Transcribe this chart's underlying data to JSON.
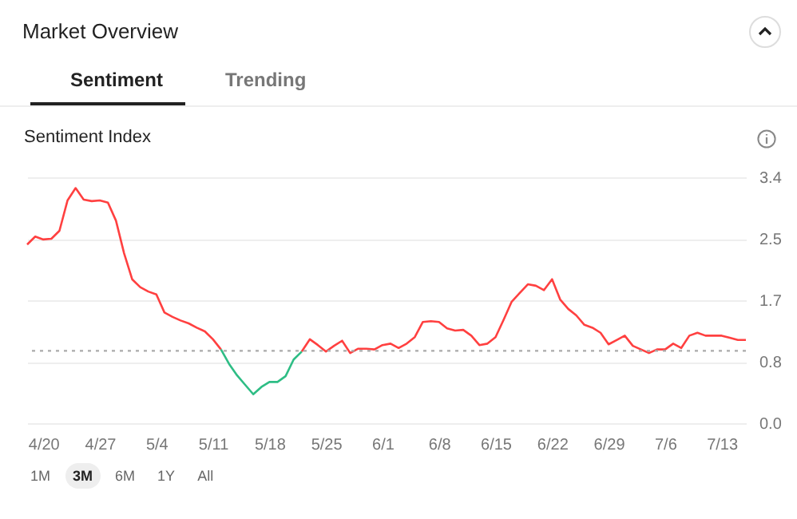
{
  "chart_data": {
    "type": "line",
    "title": "Sentiment Index",
    "annotations": [
      "Market Overview",
      "Sentiment",
      "Trending",
      "1M",
      "3M",
      "6M",
      "1Y",
      "All"
    ],
    "x": [
      "--04-18",
      "--04-19",
      "--04-20",
      "--04-21",
      "--04-22",
      "--04-23",
      "--04-24",
      "--04-25",
      "--04-26",
      "--04-27",
      "--04-28",
      "--04-29",
      "--04-30",
      "--05-01",
      "--05-02",
      "--05-03",
      "--05-04",
      "--05-05",
      "--05-06",
      "--05-07",
      "--05-08",
      "--05-09",
      "--05-10",
      "--05-11",
      "--05-12",
      "--05-13",
      "--05-14",
      "--05-15",
      "--05-16",
      "--05-17",
      "--05-18",
      "--05-19",
      "--05-20",
      "--05-21",
      "--05-22",
      "--05-23",
      "--05-24",
      "--05-25",
      "--05-26",
      "--05-27",
      "--05-28",
      "--05-29",
      "--05-30",
      "--05-31",
      "--06-01",
      "--06-02",
      "--06-03",
      "--06-04",
      "--06-05",
      "--06-06",
      "--06-07",
      "--06-08",
      "--06-09",
      "--06-10",
      "--06-11",
      "--06-12",
      "--06-13",
      "--06-14",
      "--06-15",
      "--06-16",
      "--06-17",
      "--06-18",
      "--06-19",
      "--06-20",
      "--06-21",
      "--06-22",
      "--06-23",
      "--06-24",
      "--06-25",
      "--06-26",
      "--06-27",
      "--06-28",
      "--06-29",
      "--06-30",
      "--07-01",
      "--07-02",
      "--07-03",
      "--07-04",
      "--07-05",
      "--07-06",
      "--07-07",
      "--07-08",
      "--07-09",
      "--07-10",
      "--07-11",
      "--07-12",
      "--07-13",
      "--07-14",
      "--07-15",
      "--07-16"
    ],
    "series": [
      {
        "color": "#ff4040",
        "values": [
          2.47,
          2.58,
          2.54,
          2.55,
          2.66,
          3.08,
          3.25,
          3.09,
          3.07,
          3.08,
          3.05,
          2.8,
          2.35,
          1.99,
          1.88,
          1.82,
          1.78,
          1.53,
          1.47,
          1.42,
          1.38,
          1.32,
          1.27,
          1.16,
          1.02,
          null,
          null,
          null,
          null,
          null,
          null,
          null,
          null,
          null,
          0.99,
          1.16,
          1.08,
          0.99,
          1.07,
          1.14,
          0.97,
          1.03,
          1.03,
          1.02,
          1.08,
          1.1,
          1.04,
          1.1,
          1.19,
          1.4,
          1.41,
          1.4,
          1.31,
          1.28,
          1.29,
          1.21,
          1.08,
          1.1,
          1.19,
          1.43,
          1.68,
          1.8,
          1.92,
          1.9,
          1.84,
          1.99,
          1.71,
          1.58,
          1.49,
          1.36,
          1.32,
          1.25,
          1.09,
          1.15,
          1.21,
          1.07,
          1.02,
          0.97,
          1.02,
          1.02,
          1.1,
          1.04,
          1.21,
          1.25,
          1.21,
          1.21,
          1.21,
          1.18,
          1.15,
          1.15
        ]
      },
      {
        "color": "#2ebd85",
        "values": [
          null,
          null,
          null,
          null,
          null,
          null,
          null,
          null,
          null,
          null,
          null,
          null,
          null,
          null,
          null,
          null,
          null,
          null,
          null,
          null,
          null,
          null,
          null,
          null,
          1.02,
          0.82,
          0.66,
          0.53,
          0.4,
          0.5,
          0.57,
          0.57,
          0.65,
          0.88,
          0.99,
          null,
          null,
          null,
          null,
          null,
          null,
          null,
          null,
          null,
          null,
          null,
          null,
          null,
          null,
          null,
          null,
          null,
          null,
          null,
          null,
          null,
          null,
          null,
          null,
          null,
          null,
          null,
          null,
          null,
          null,
          null,
          null,
          null,
          null,
          null,
          null,
          null,
          null,
          null,
          null,
          null,
          null,
          null,
          null,
          null,
          null,
          null,
          null,
          null,
          null,
          null,
          null,
          null,
          null,
          null
        ]
      }
    ],
    "xlim": [
      "--04-18",
      "--07-16"
    ],
    "xticks": [
      {
        "value": "--04-20",
        "label": "4/20"
      },
      {
        "value": "--04-27",
        "label": "4/27"
      },
      {
        "value": "--05-04",
        "label": "5/4"
      },
      {
        "value": "--05-11",
        "label": "5/11"
      },
      {
        "value": "--05-18",
        "label": "5/18"
      },
      {
        "value": "--05-25",
        "label": "5/25"
      },
      {
        "value": "--06-01",
        "label": "6/1"
      },
      {
        "value": "--06-08",
        "label": "6/8"
      },
      {
        "value": "--06-15",
        "label": "6/15"
      },
      {
        "value": "--06-22",
        "label": "6/22"
      },
      {
        "value": "--06-29",
        "label": "6/29"
      },
      {
        "value": "--07-06",
        "label": "7/6"
      },
      {
        "value": "--07-13",
        "label": "7/13"
      }
    ],
    "ylim": [
      0,
      3.4
    ],
    "yticks": [
      {
        "value": 0,
        "label": "0.0"
      },
      {
        "value": 0.85,
        "label": "0.8"
      },
      {
        "value": 1.7,
        "label": "1.7"
      },
      {
        "value": 2.55,
        "label": "2.5"
      },
      {
        "value": 3.4,
        "label": "3.4"
      }
    ],
    "grid": "y",
    "ref_lines": [
      {
        "axis": "y",
        "value": 1.0,
        "color": "#aaaaaa",
        "line_style": "dotted"
      }
    ]
  }
}
